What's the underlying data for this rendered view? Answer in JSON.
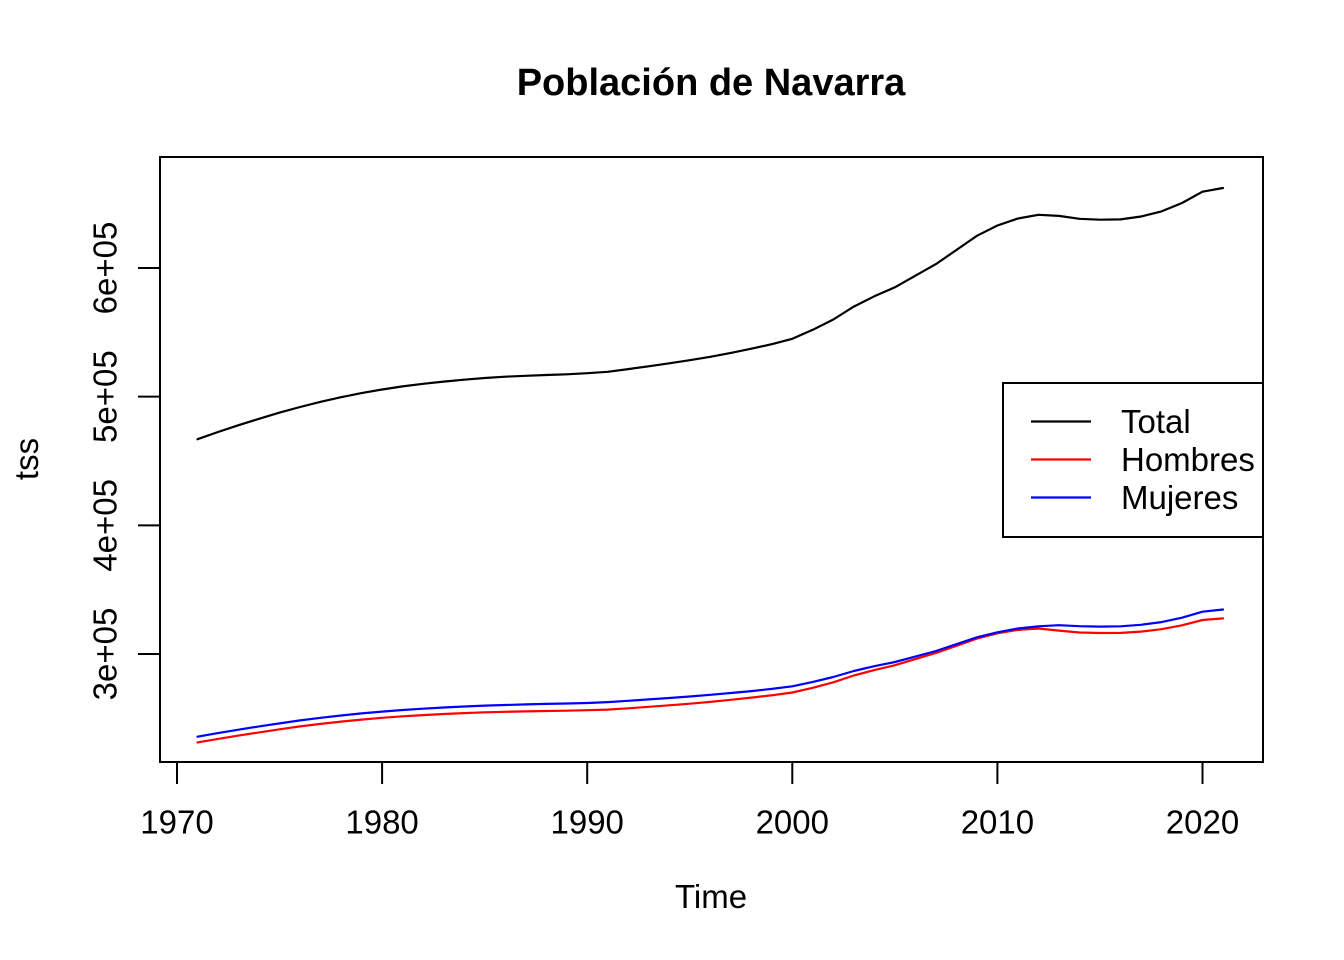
{
  "title": "Población de Navarra",
  "axes": {
    "x_label": "Time",
    "y_label": "tss"
  },
  "legend": {
    "items": [
      {
        "label": "Total",
        "color": "#000000"
      },
      {
        "label": "Hombres",
        "color": "#FF0000"
      },
      {
        "label": "Mujeres",
        "color": "#0000FF"
      }
    ]
  },
  "chart_data": {
    "type": "line",
    "title": "Población de Navarra",
    "xlabel": "Time",
    "ylabel": "tss",
    "grid": false,
    "legend_position": "right-middle",
    "x_ticks": [
      1970,
      1980,
      1990,
      2000,
      2010,
      2020
    ],
    "y_ticks": [
      {
        "value": 300000,
        "label": "3e+05"
      },
      {
        "value": 400000,
        "label": "4e+05"
      },
      {
        "value": 500000,
        "label": "5e+05"
      },
      {
        "value": 600000,
        "label": "6e+05"
      }
    ],
    "xlim": [
      1969.0,
      2023.0
    ],
    "ylim": [
      216000,
      686000
    ],
    "years": [
      1971,
      1972,
      1973,
      1974,
      1975,
      1976,
      1977,
      1978,
      1979,
      1980,
      1981,
      1982,
      1983,
      1984,
      1985,
      1986,
      1987,
      1988,
      1989,
      1990,
      1991,
      1992,
      1993,
      1994,
      1995,
      1996,
      1997,
      1998,
      1999,
      2000,
      2001,
      2002,
      2003,
      2004,
      2005,
      2006,
      2007,
      2008,
      2009,
      2010,
      2011,
      2012,
      2013,
      2014,
      2015,
      2016,
      2017,
      2018,
      2019,
      2020,
      2021
    ],
    "series": [
      {
        "name": "Total",
        "color": "#000000",
        "values": [
          466900,
          472500,
          477800,
          482800,
          487600,
          492000,
          496000,
          499600,
          502800,
          505600,
          508000,
          510000,
          511700,
          513200,
          514500,
          515500,
          516200,
          516800,
          517400,
          518200,
          519300,
          521400,
          523600,
          525900,
          528300,
          531000,
          534000,
          537300,
          540800,
          545000,
          552000,
          560000,
          570000,
          578000,
          585000,
          594000,
          603000,
          614000,
          625000,
          633000,
          638500,
          641300,
          640500,
          638200,
          637500,
          637800,
          640000,
          644000,
          650500,
          659300,
          662200
        ]
      },
      {
        "name": "Hombres",
        "color": "#FF0000",
        "values": [
          231300,
          234000,
          236600,
          239100,
          241500,
          243700,
          245700,
          247500,
          249000,
          250400,
          251600,
          252500,
          253400,
          254100,
          254700,
          255100,
          255400,
          255700,
          255900,
          256300,
          256800,
          257800,
          259000,
          260100,
          261400,
          262800,
          264400,
          266100,
          267900,
          270100,
          273700,
          278000,
          283300,
          287500,
          291300,
          296000,
          300800,
          306400,
          312000,
          316100,
          318700,
          319800,
          318200,
          316700,
          316300,
          316400,
          317400,
          319300,
          322300,
          326400,
          327700
        ]
      },
      {
        "name": "Mujeres",
        "color": "#0000FF",
        "values": [
          235700,
          238500,
          241200,
          243700,
          246100,
          248400,
          250400,
          252200,
          253800,
          255200,
          256500,
          257500,
          258400,
          259200,
          259900,
          260400,
          260800,
          261200,
          261500,
          261900,
          262600,
          263600,
          264700,
          265800,
          267000,
          268300,
          269700,
          271200,
          272900,
          274900,
          278300,
          282100,
          286800,
          290500,
          293800,
          298000,
          302300,
          307600,
          313000,
          316900,
          319800,
          321500,
          322400,
          321600,
          321300,
          321500,
          322700,
          324800,
          328200,
          332900,
          334600
        ]
      }
    ]
  }
}
